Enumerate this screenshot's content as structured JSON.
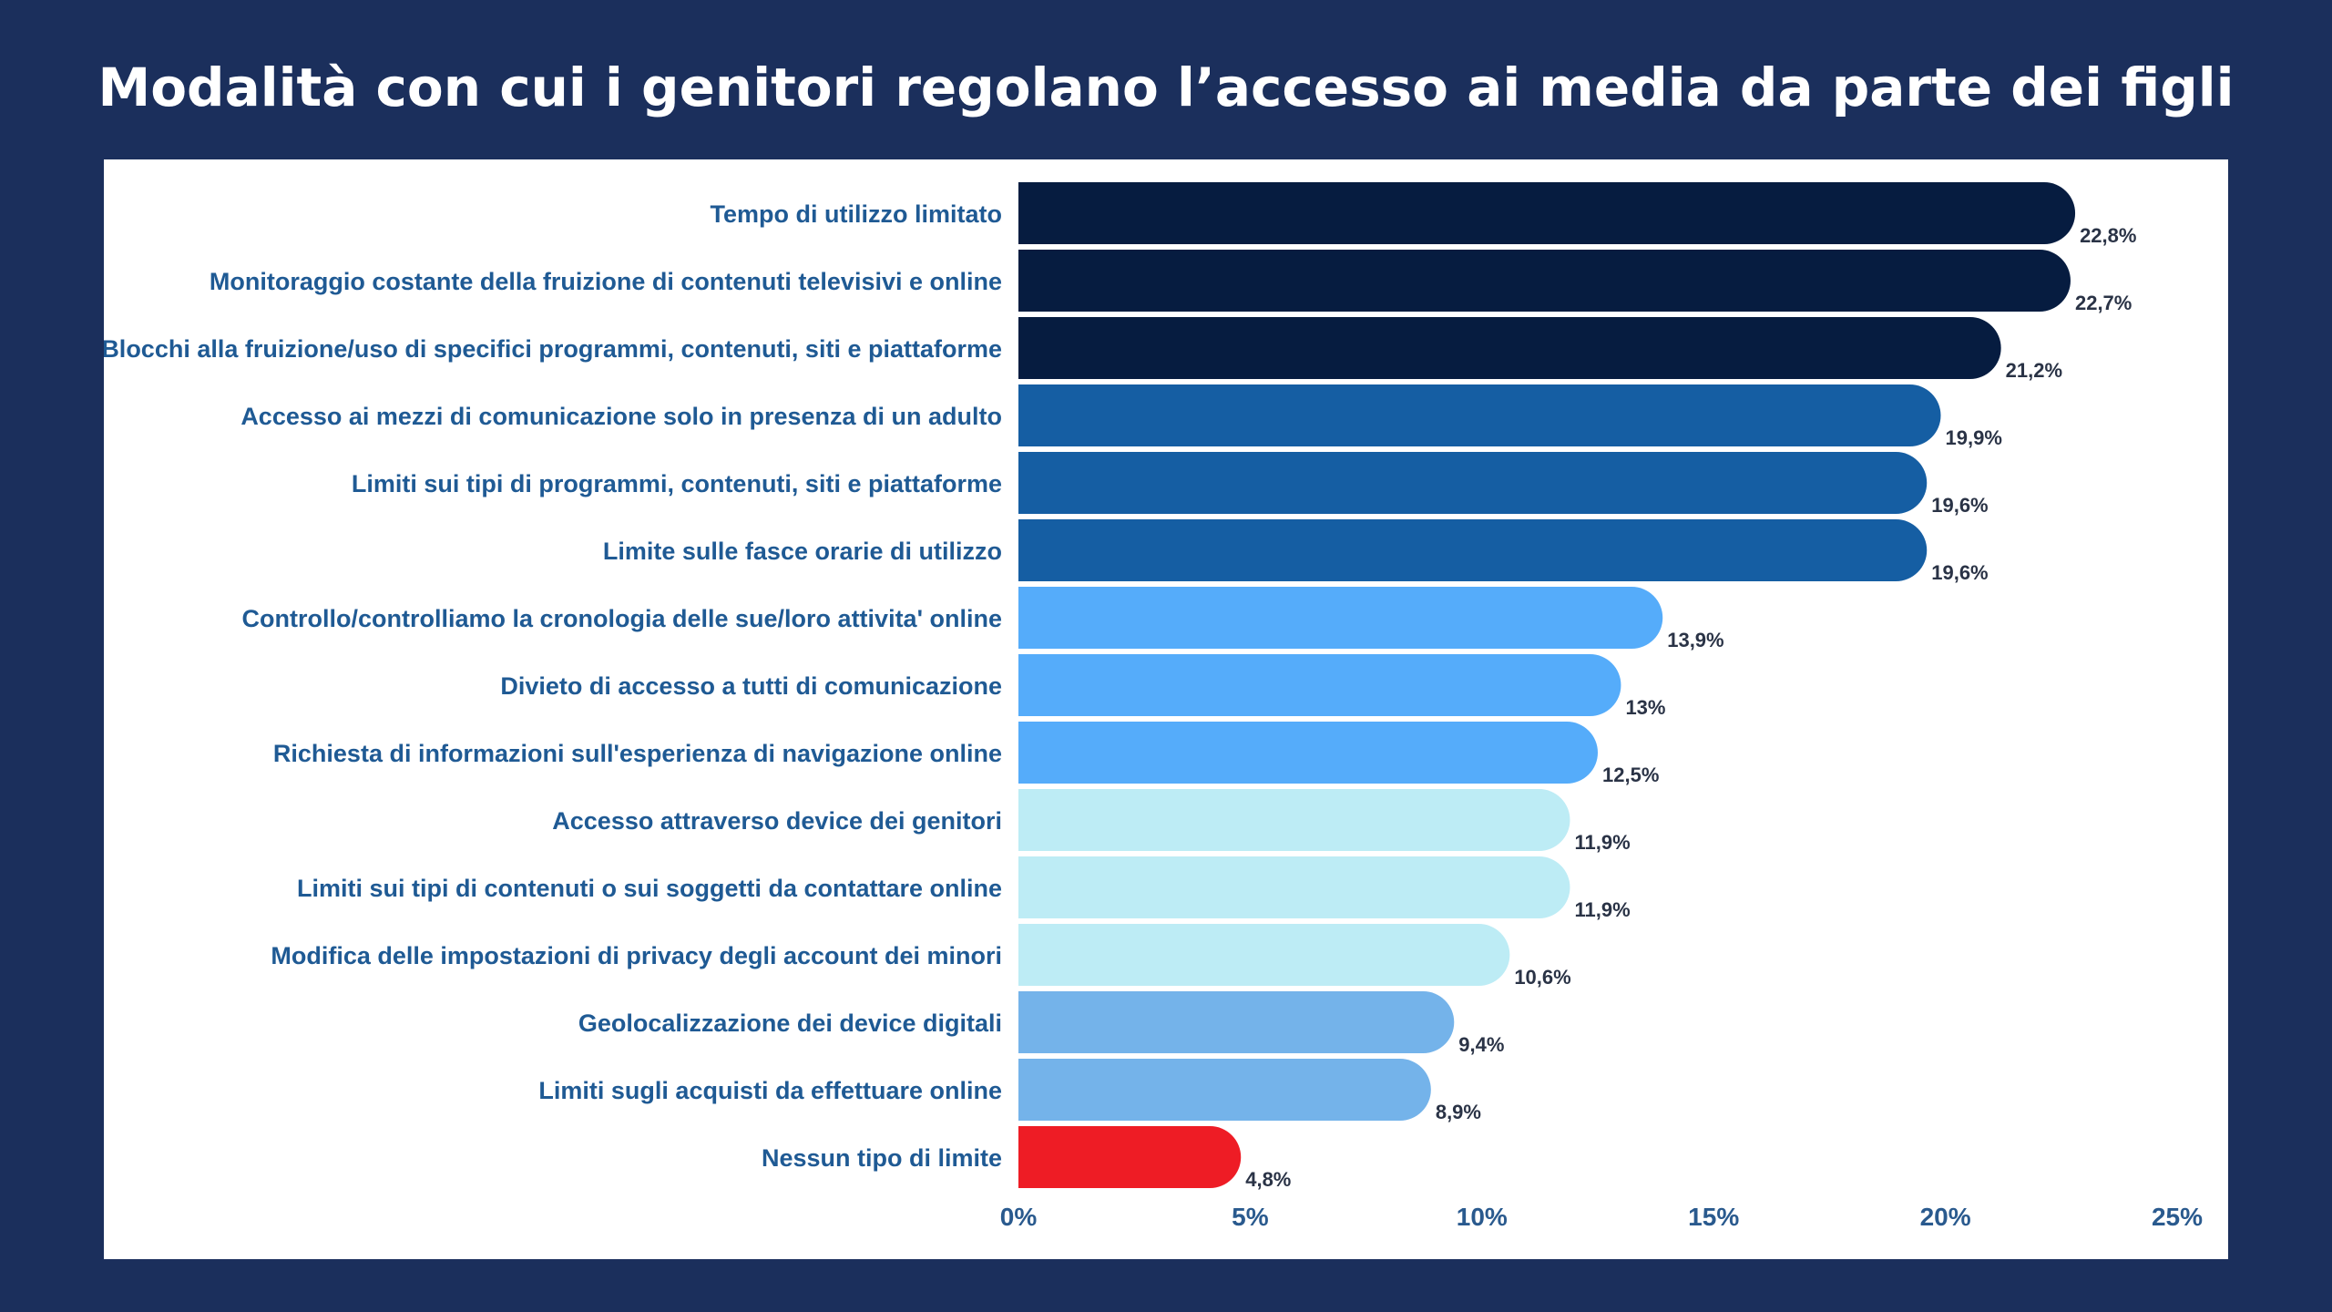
{
  "title": "Modalità con cui i genitori regolano l’accesso ai media da parte dei figli",
  "chart_data": {
    "type": "bar",
    "orientation": "horizontal",
    "title": "Modalità con cui i genitori regolano l’accesso ai media da parte dei figli",
    "xlabel": "",
    "ylabel": "",
    "xlim": [
      0,
      25
    ],
    "xticks": [
      0,
      5,
      10,
      15,
      20,
      25
    ],
    "xtick_labels": [
      "0%",
      "5%",
      "10%",
      "15%",
      "20%",
      "25%"
    ],
    "grid": false,
    "legend": "none",
    "categories": [
      "Tempo di utilizzo limitato",
      "Monitoraggio costante della fruizione di contenuti televisivi e online",
      "Blocchi alla fruizione/uso di specifici programmi, contenuti, siti e piattaforme",
      "Accesso ai mezzi di comunicazione solo in presenza di un adulto",
      "Limiti sui tipi di programmi, contenuti, siti e piattaforme",
      "Limite sulle fasce orarie di utilizzo",
      "Controllo/controlliamo la cronologia delle sue/loro attivita' online",
      "Divieto di accesso a tutti di comunicazione",
      "Richiesta di informazioni sull'esperienza di navigazione online",
      "Accesso attraverso device dei genitori",
      "Limiti sui tipi di contenuti o sui soggetti da contattare online",
      "Modifica delle impostazioni di privacy degli account dei minori",
      "Geolocalizzazione dei device digitali",
      "Limiti sugli acquisti da effettuare online",
      "Nessun tipo di limite"
    ],
    "values": [
      22.8,
      22.7,
      21.2,
      19.9,
      19.6,
      19.6,
      13.9,
      13,
      12.5,
      11.9,
      11.9,
      10.6,
      9.4,
      8.9,
      4.8
    ],
    "value_labels": [
      "22,8%",
      "22,7%",
      "21,2%",
      "19,9%",
      "19,6%",
      "19,6%",
      "13,9%",
      "13%",
      "12,5%",
      "11,9%",
      "11,9%",
      "10,6%",
      "9,4%",
      "8,9%",
      "4,8%"
    ],
    "colors": [
      "#061c40",
      "#061c40",
      "#061c40",
      "#155ea3",
      "#155ea3",
      "#155ea3",
      "#55acfa",
      "#55acfa",
      "#55acfa",
      "#bdecf5",
      "#bdecf5",
      "#bdecf5",
      "#74b3ea",
      "#74b3ea",
      "#ee1c25"
    ]
  }
}
